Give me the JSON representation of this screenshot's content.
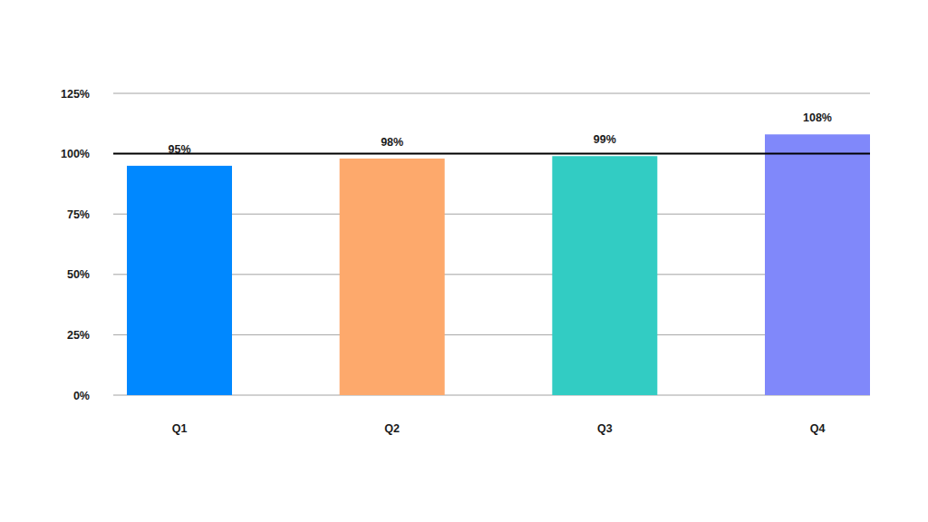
{
  "chart_data": {
    "type": "bar",
    "categories": [
      "Q1",
      "Q2",
      "Q3",
      "Q4"
    ],
    "values": [
      95,
      98,
      99,
      108
    ],
    "value_labels": [
      "95%",
      "98%",
      "99%",
      "108%"
    ],
    "colors": [
      "#0088ff",
      "#fda96c",
      "#32ccc3",
      "#8088fa"
    ],
    "ylim": [
      0,
      125
    ],
    "yticks": [
      {
        "value": 0,
        "label": "0%"
      },
      {
        "value": 25,
        "label": "25%"
      },
      {
        "value": 50,
        "label": "50%"
      },
      {
        "value": 75,
        "label": "75%"
      },
      {
        "value": 100,
        "label": "100%"
      },
      {
        "value": 125,
        "label": "125%"
      }
    ],
    "target": 100,
    "grid": true,
    "data_labels": true
  }
}
